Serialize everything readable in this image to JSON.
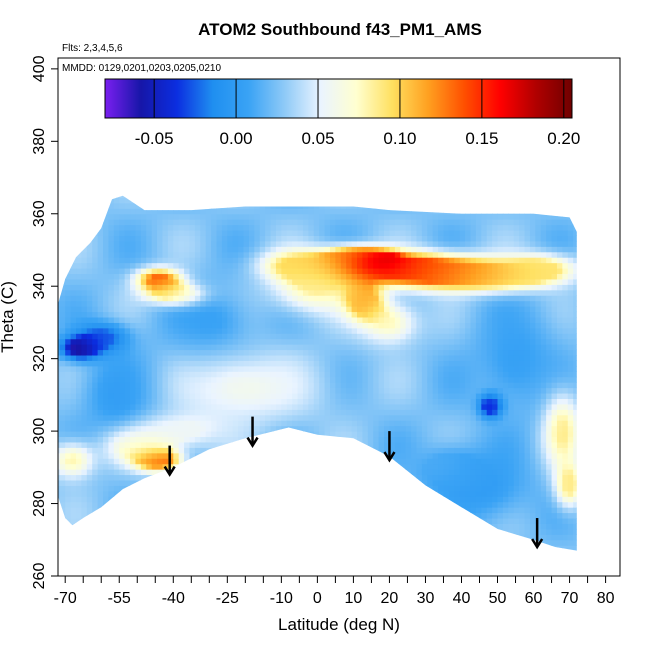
{
  "chart_data": {
    "type": "heatmap",
    "title": "ATOM2 Southbound f43_PM1_AMS",
    "flights_note": "Flts: 2,3,4,5,6",
    "dates_note": "MMDD: 0129,0201,0203,0205,0210",
    "xlabel": "Latitude (deg N)",
    "ylabel": "Theta (C)",
    "xlim": [
      -72,
      84
    ],
    "ylim": [
      260,
      403
    ],
    "x_ticks": [
      -70,
      -65,
      -60,
      -55,
      -50,
      -45,
      -40,
      -35,
      -30,
      -25,
      -20,
      -15,
      -10,
      -5,
      0,
      5,
      10,
      15,
      20,
      25,
      30,
      35,
      40,
      45,
      50,
      55,
      60,
      65,
      70,
      75,
      80,
      85
    ],
    "x_tick_labels": [
      {
        "value": -70,
        "label": "-70"
      },
      {
        "value": -55,
        "label": "-55"
      },
      {
        "value": -40,
        "label": "-40"
      },
      {
        "value": -25,
        "label": "-25"
      },
      {
        "value": -10,
        "label": "-10"
      },
      {
        "value": 0,
        "label": "0"
      },
      {
        "value": 10,
        "label": "10"
      },
      {
        "value": 20,
        "label": "20"
      },
      {
        "value": 30,
        "label": "30"
      },
      {
        "value": 40,
        "label": "40"
      },
      {
        "value": 50,
        "label": "50"
      },
      {
        "value": 60,
        "label": "60"
      },
      {
        "value": 70,
        "label": "70"
      },
      {
        "value": 80,
        "label": "80"
      }
    ],
    "y_ticks": [
      260,
      280,
      300,
      320,
      340,
      360,
      380,
      400
    ],
    "colorbar": {
      "min": -0.08,
      "max": 0.205,
      "ticks": [
        {
          "value": -0.05,
          "label": "-0.05"
        },
        {
          "value": 0.0,
          "label": "0.00"
        },
        {
          "value": 0.05,
          "label": "0.05"
        },
        {
          "value": 0.1,
          "label": "0.10"
        },
        {
          "value": 0.15,
          "label": "0.15"
        },
        {
          "value": 0.2,
          "label": "0.20"
        }
      ],
      "colors": [
        "#7a1ff0",
        "#1616a8",
        "#0b2ee0",
        "#1f8ff0",
        "#3aa3f5",
        "#8fcaf7",
        "#eaf4ff",
        "#ffffd0",
        "#ffe060",
        "#ffa020",
        "#ff5000",
        "#ff0000",
        "#b00000",
        "#700000"
      ]
    },
    "boundary": {
      "top": [
        [
          -72,
          335
        ],
        [
          -70,
          342
        ],
        [
          -67,
          348
        ],
        [
          -63,
          352
        ],
        [
          -60,
          356
        ],
        [
          -57,
          364
        ],
        [
          -54,
          365
        ],
        [
          -48,
          361
        ],
        [
          -35,
          361
        ],
        [
          -20,
          362
        ],
        [
          0,
          362
        ],
        [
          10,
          362
        ],
        [
          20,
          361
        ],
        [
          40,
          360
        ],
        [
          60,
          360
        ],
        [
          70,
          359
        ],
        [
          72,
          355
        ]
      ],
      "bottom": [
        [
          72,
          267
        ],
        [
          66,
          268
        ],
        [
          60,
          270
        ],
        [
          50,
          273
        ],
        [
          40,
          279
        ],
        [
          30,
          285
        ],
        [
          20,
          293
        ],
        [
          10,
          298
        ],
        [
          0,
          299
        ],
        [
          -8,
          301
        ],
        [
          -20,
          298
        ],
        [
          -30,
          295
        ],
        [
          -40,
          290
        ],
        [
          -48,
          287
        ],
        [
          -54,
          284
        ],
        [
          -60,
          279
        ],
        [
          -65,
          276
        ],
        [
          -68,
          274
        ],
        [
          -70,
          276
        ],
        [
          -72,
          282
        ]
      ]
    },
    "background_value": 0.025,
    "features": [
      {
        "lat": 0,
        "theta": 340,
        "dlat": 12,
        "dtheta": 7,
        "value": 0.085
      },
      {
        "lat": -5,
        "theta": 346,
        "dlat": 10,
        "dtheta": 4,
        "value": 0.1
      },
      {
        "lat": 10,
        "theta": 348,
        "dlat": 8,
        "dtheta": 3,
        "value": 0.13
      },
      {
        "lat": 20,
        "theta": 345,
        "dlat": 14,
        "dtheta": 4,
        "value": 0.16
      },
      {
        "lat": 17,
        "theta": 347,
        "dlat": 6,
        "dtheta": 2.5,
        "value": 0.19
      },
      {
        "lat": 35,
        "theta": 344,
        "dlat": 14,
        "dtheta": 4.5,
        "value": 0.13
      },
      {
        "lat": 50,
        "theta": 343,
        "dlat": 14,
        "dtheta": 4,
        "value": 0.11
      },
      {
        "lat": 62,
        "theta": 345,
        "dlat": 10,
        "dtheta": 4,
        "value": 0.09
      },
      {
        "lat": 13,
        "theta": 336,
        "dlat": 5,
        "dtheta": 5,
        "value": 0.12
      },
      {
        "lat": 20,
        "theta": 330,
        "dlat": 8,
        "dtheta": 6,
        "value": 0.075
      },
      {
        "lat": -44,
        "theta": 342,
        "dlat": 6,
        "dtheta": 3,
        "value": 0.14
      },
      {
        "lat": -40,
        "theta": 338,
        "dlat": 8,
        "dtheta": 3,
        "value": 0.1
      },
      {
        "lat": -44,
        "theta": 292,
        "dlat": 6,
        "dtheta": 3,
        "value": 0.14
      },
      {
        "lat": -50,
        "theta": 296,
        "dlat": 8,
        "dtheta": 5,
        "value": 0.09
      },
      {
        "lat": -68,
        "theta": 292,
        "dlat": 6,
        "dtheta": 5,
        "value": 0.08
      },
      {
        "lat": -38,
        "theta": 300,
        "dlat": 12,
        "dtheta": 5,
        "value": 0.055
      },
      {
        "lat": 68,
        "theta": 300,
        "dlat": 5,
        "dtheta": 10,
        "value": 0.09
      },
      {
        "lat": 70,
        "theta": 285,
        "dlat": 4,
        "dtheta": 6,
        "value": 0.09
      },
      {
        "lat": -66,
        "theta": 323,
        "dlat": 5,
        "dtheta": 3,
        "value": -0.07
      },
      {
        "lat": -60,
        "theta": 326,
        "dlat": 7,
        "dtheta": 4,
        "value": -0.03
      },
      {
        "lat": -55,
        "theta": 310,
        "dlat": 10,
        "dtheta": 12,
        "value": 0.0
      },
      {
        "lat": -30,
        "theta": 330,
        "dlat": 12,
        "dtheta": 10,
        "value": 0.005
      },
      {
        "lat": 55,
        "theta": 320,
        "dlat": 12,
        "dtheta": 15,
        "value": 0.005
      },
      {
        "lat": 45,
        "theta": 285,
        "dlat": 14,
        "dtheta": 10,
        "value": 0.0
      },
      {
        "lat": 48,
        "theta": 307,
        "dlat": 3,
        "dtheta": 3,
        "value": -0.05
      },
      {
        "lat": 35,
        "theta": 290,
        "dlat": 10,
        "dtheta": 6,
        "value": 0.015
      },
      {
        "lat": -20,
        "theta": 312,
        "dlat": 20,
        "dtheta": 10,
        "value": 0.06
      }
    ],
    "arrows": [
      {
        "lat": -41,
        "theta_start": 296,
        "theta_end": 288
      },
      {
        "lat": -18,
        "theta_start": 304,
        "theta_end": 296
      },
      {
        "lat": 20,
        "theta_start": 300,
        "theta_end": 292
      },
      {
        "lat": 61,
        "theta_start": 276,
        "theta_end": 268
      }
    ]
  }
}
